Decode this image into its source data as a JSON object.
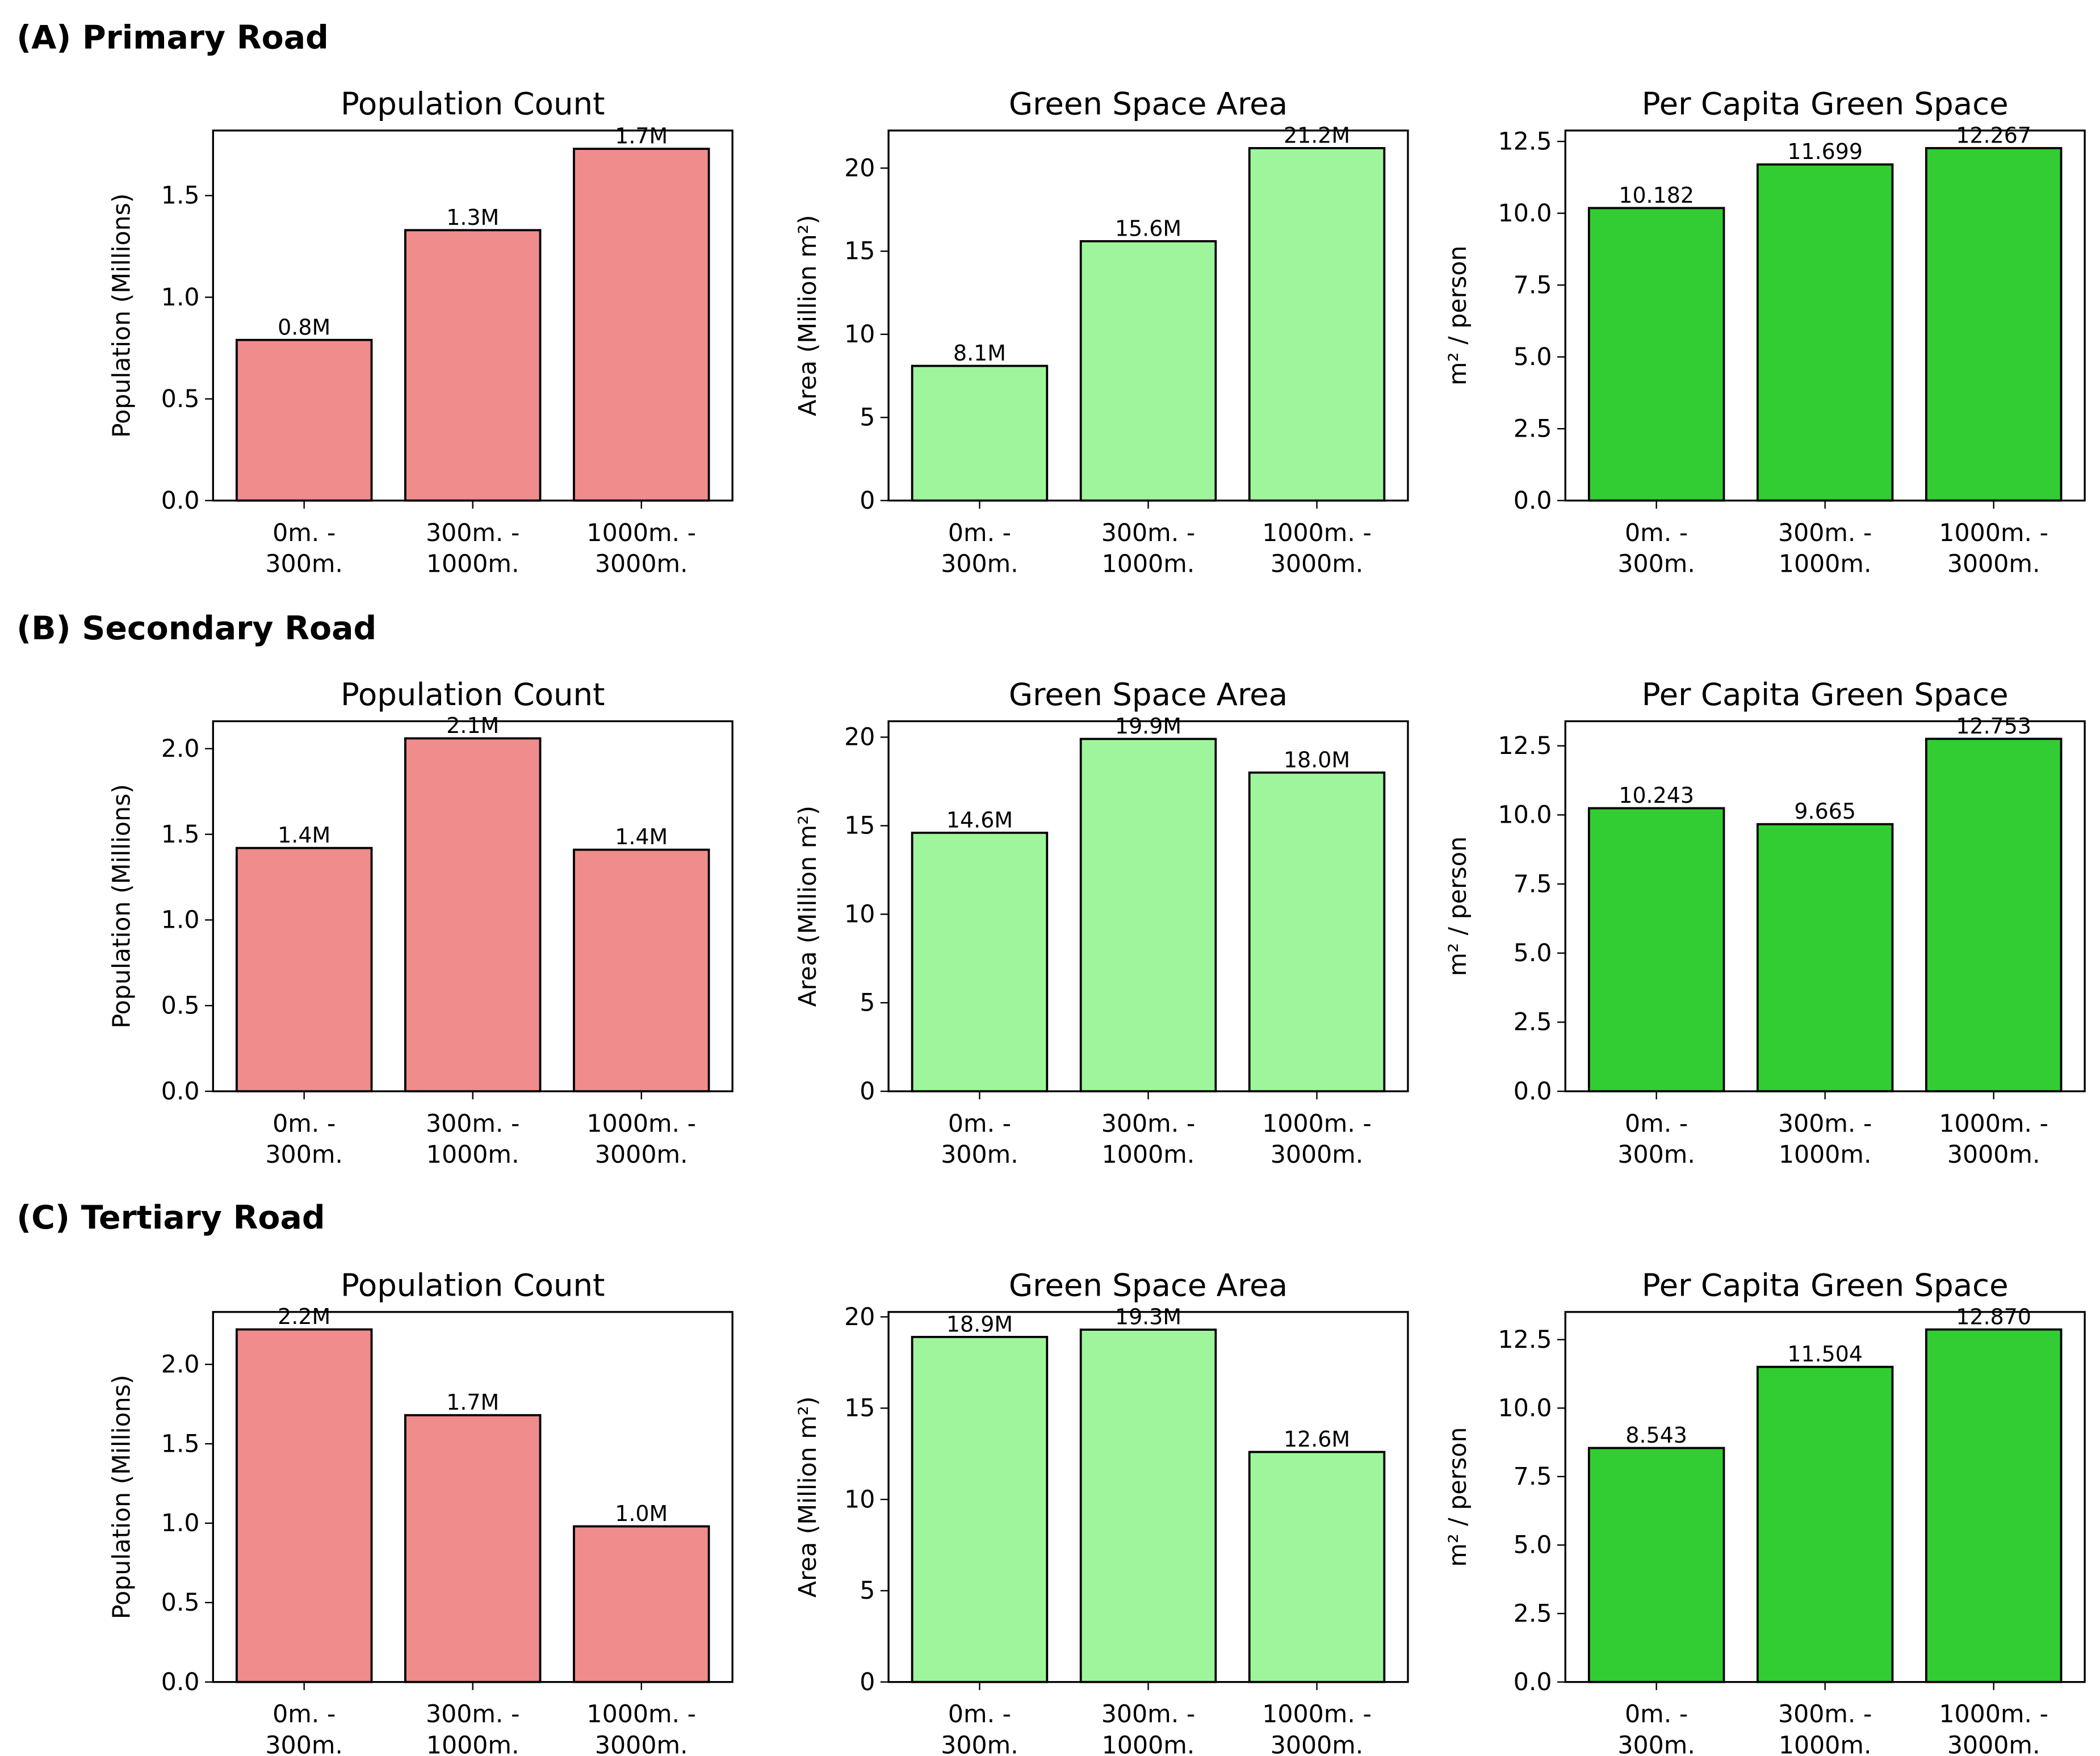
{
  "chart_data": {
    "type": "bar",
    "categories": [
      "0m. -\n300m.",
      "300m. -\n1000m.",
      "1000m. -\n3000m."
    ],
    "colors": {
      "population": "#f08c8c",
      "green_area": "#9ff59b",
      "per_capita": "#32cd32",
      "edge": "#000000"
    },
    "rows": [
      {
        "title": "(A) Primary Road",
        "panels": [
          {
            "key": "population",
            "title": "Population Count",
            "ylabel": "Population (Millions)",
            "values": [
              0.79,
              1.33,
              1.73
            ],
            "labels": [
              "0.8M",
              "1.3M",
              "1.7M"
            ],
            "ylim": [
              0,
              1.82
            ],
            "yticks": [
              0.0,
              0.5,
              1.0,
              1.5
            ],
            "ytick_labels": [
              "0.0",
              "0.5",
              "1.0",
              "1.5"
            ]
          },
          {
            "key": "green_area",
            "title": "Green Space Area",
            "ylabel": "Area (Million m²)",
            "values": [
              8.1,
              15.6,
              21.2
            ],
            "labels": [
              "8.1M",
              "15.6M",
              "21.2M"
            ],
            "ylim": [
              0,
              22.26
            ],
            "yticks": [
              0,
              5,
              10,
              15,
              20
            ],
            "ytick_labels": [
              "0",
              "5",
              "10",
              "15",
              "20"
            ]
          },
          {
            "key": "per_capita",
            "title": "Per Capita Green Space",
            "ylabel": "m² / person",
            "values": [
              10.182,
              11.699,
              12.267
            ],
            "labels": [
              "10.182",
              "11.699",
              "12.267"
            ],
            "ylim": [
              0,
              12.88
            ],
            "yticks": [
              0,
              2.5,
              5,
              7.5,
              10,
              12.5
            ],
            "ytick_labels": [
              "0.0",
              "2.5",
              "5.0",
              "7.5",
              "10.0",
              "12.5"
            ]
          }
        ]
      },
      {
        "title": "(B) Secondary Road",
        "panels": [
          {
            "key": "population",
            "title": "Population Count",
            "ylabel": "Population (Millions)",
            "values": [
              1.42,
              2.06,
              1.41
            ],
            "labels": [
              "1.4M",
              "2.1M",
              "1.4M"
            ],
            "ylim": [
              0,
              2.16
            ],
            "yticks": [
              0.0,
              0.5,
              1.0,
              1.5,
              2.0
            ],
            "ytick_labels": [
              "0.0",
              "0.5",
              "1.0",
              "1.5",
              "2.0"
            ]
          },
          {
            "key": "green_area",
            "title": "Green Space Area",
            "ylabel": "Area (Million m²)",
            "values": [
              14.6,
              19.9,
              18.0
            ],
            "labels": [
              "14.6M",
              "19.9M",
              "18.0M"
            ],
            "ylim": [
              0,
              20.9
            ],
            "yticks": [
              0,
              5,
              10,
              15,
              20
            ],
            "ytick_labels": [
              "0",
              "5",
              "10",
              "15",
              "20"
            ]
          },
          {
            "key": "per_capita",
            "title": "Per Capita Green Space",
            "ylabel": "m² / person",
            "values": [
              10.243,
              9.665,
              12.753
            ],
            "labels": [
              "10.243",
              "9.665",
              "12.753"
            ],
            "ylim": [
              0,
              13.39
            ],
            "yticks": [
              0,
              2.5,
              5,
              7.5,
              10,
              12.5
            ],
            "ytick_labels": [
              "0.0",
              "2.5",
              "5.0",
              "7.5",
              "10.0",
              "12.5"
            ]
          }
        ]
      },
      {
        "title": "(C) Tertiary Road",
        "panels": [
          {
            "key": "population",
            "title": "Population Count",
            "ylabel": "Population (Millions)",
            "values": [
              2.22,
              1.68,
              0.98
            ],
            "labels": [
              "2.2M",
              "1.7M",
              "1.0M"
            ],
            "ylim": [
              0,
              2.33
            ],
            "yticks": [
              0.0,
              0.5,
              1.0,
              1.5,
              2.0
            ],
            "ytick_labels": [
              "0.0",
              "0.5",
              "1.0",
              "1.5",
              "2.0"
            ]
          },
          {
            "key": "green_area",
            "title": "Green Space Area",
            "ylabel": "Area (Million m²)",
            "values": [
              18.9,
              19.3,
              12.6
            ],
            "labels": [
              "18.9M",
              "19.3M",
              "12.6M"
            ],
            "ylim": [
              0,
              20.27
            ],
            "yticks": [
              0,
              5,
              10,
              15,
              20
            ],
            "ytick_labels": [
              "0",
              "5",
              "10",
              "15",
              "20"
            ]
          },
          {
            "key": "per_capita",
            "title": "Per Capita Green Space",
            "ylabel": "m² / person",
            "values": [
              8.543,
              11.504,
              12.87
            ],
            "labels": [
              "8.543",
              "11.504",
              "12.870"
            ],
            "ylim": [
              0,
              13.51
            ],
            "yticks": [
              0,
              2.5,
              5,
              7.5,
              10,
              12.5
            ],
            "ytick_labels": [
              "0.0",
              "2.5",
              "5.0",
              "7.5",
              "10.0",
              "12.5"
            ]
          }
        ]
      }
    ]
  }
}
